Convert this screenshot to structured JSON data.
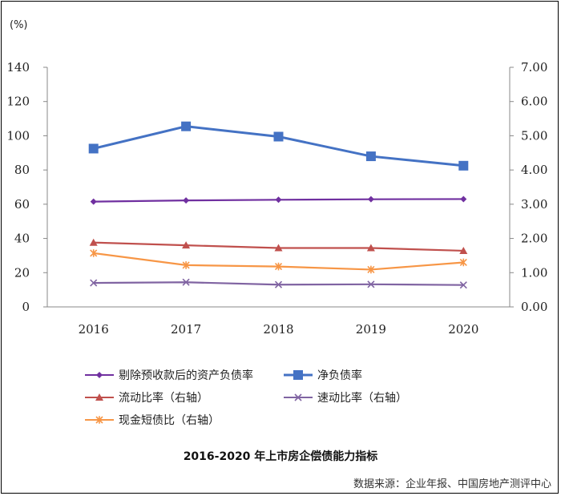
{
  "chart_data": {
    "type": "line",
    "unit_label": "(%)",
    "title": "2016-2020 年上市房企偿债能力指标",
    "source": "数据来源：企业年报、中国房地产测评中心",
    "categories": [
      "2016",
      "2017",
      "2018",
      "2019",
      "2020"
    ],
    "y_left": {
      "ylim": [
        0,
        140
      ],
      "ticks": [
        "0",
        "20",
        "40",
        "60",
        "80",
        "100",
        "120",
        "140"
      ]
    },
    "y_right": {
      "ylim": [
        0,
        7
      ],
      "ticks": [
        "0.00",
        "1.00",
        "2.00",
        "3.00",
        "4.00",
        "5.00",
        "6.00",
        "7.00"
      ]
    },
    "grid": false,
    "legend_position": "bottom",
    "series": [
      {
        "name": "剔除预收款后的资产负债率",
        "axis": "left",
        "color": "#7030a0",
        "marker": "diamond",
        "values": [
          61.5,
          62.2,
          62.6,
          62.9,
          63.0
        ]
      },
      {
        "name": "净负债率",
        "axis": "left",
        "color": "#4472c4",
        "marker": "square",
        "values": [
          92.5,
          105.5,
          99.5,
          88.0,
          82.5
        ]
      },
      {
        "name": "流动比率（右轴）",
        "axis": "right",
        "color": "#c0504d",
        "marker": "triangle",
        "values": [
          1.88,
          1.8,
          1.72,
          1.72,
          1.64
        ]
      },
      {
        "name": "速动比率（右轴）",
        "axis": "right",
        "color": "#8064a2",
        "marker": "x",
        "values": [
          0.7,
          0.72,
          0.65,
          0.66,
          0.64
        ]
      },
      {
        "name": "现金短债比（右轴）",
        "axis": "right",
        "color": "#f79646",
        "marker": "star",
        "values": [
          1.57,
          1.22,
          1.18,
          1.09,
          1.3
        ]
      }
    ]
  }
}
